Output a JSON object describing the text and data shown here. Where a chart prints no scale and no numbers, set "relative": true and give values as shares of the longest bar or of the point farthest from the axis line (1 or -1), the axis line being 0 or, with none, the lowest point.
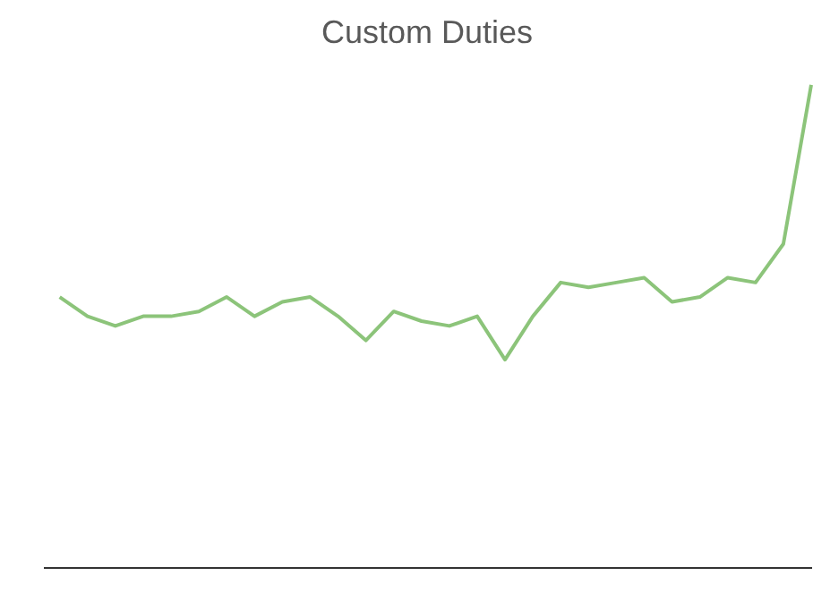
{
  "chart_data": {
    "type": "line",
    "title": "Custom Duties",
    "relative": true,
    "categories": [
      null,
      null,
      null,
      null,
      null,
      null,
      null,
      null,
      null,
      null,
      null,
      null,
      null,
      null,
      null,
      null,
      null,
      null,
      null,
      null,
      null,
      null,
      null,
      null,
      null,
      null,
      null,
      null
    ],
    "series": [
      {
        "color": "#8cc47a",
        "values": [
          0.56,
          0.52,
          0.5,
          0.52,
          0.52,
          0.53,
          0.56,
          0.52,
          0.55,
          0.56,
          0.52,
          0.47,
          0.53,
          0.51,
          0.5,
          0.52,
          0.43,
          0.52,
          0.59,
          0.58,
          0.59,
          0.6,
          0.55,
          0.56,
          0.6,
          0.59,
          0.67,
          1
        ]
      }
    ]
  }
}
